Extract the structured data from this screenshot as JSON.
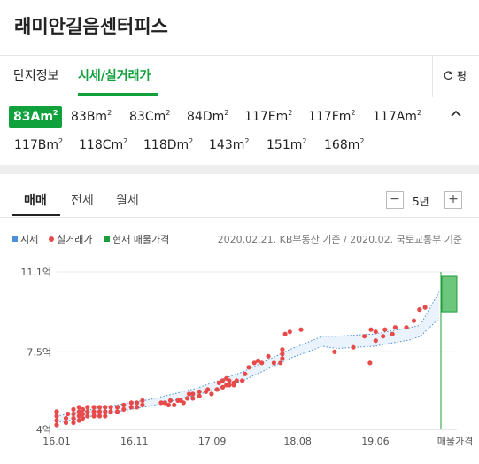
{
  "header": {
    "title": "래미안길음센터피스"
  },
  "tabs": {
    "info": "단지정보",
    "price": "시세/실거래가",
    "unit_toggle": "평"
  },
  "areas": [
    "83A",
    "83B",
    "83C",
    "84D",
    "117E",
    "117F",
    "117A",
    "117B",
    "118C",
    "118D",
    "143",
    "151",
    "168"
  ],
  "area_unit": "㎡",
  "selected_area": "83A",
  "deal_tabs": [
    "매매",
    "전세",
    "월세"
  ],
  "period": "5년",
  "legend": {
    "market": "시세",
    "actual": "실거래가",
    "listing": "현재 매물가격"
  },
  "source": "2020.02.21. KB부동산 기준 / 2020.02. 국토교통부 기준",
  "colors": {
    "accent": "#10a03c",
    "market": "#4a90d9",
    "actual": "#e84a4a",
    "listing": "#1e9e3a"
  },
  "chart_data": {
    "type": "scatter",
    "yticks": [
      "11.1억",
      "7.5억",
      "4억"
    ],
    "ytick_values": [
      11.1,
      7.5,
      4.0
    ],
    "xticks": [
      "16.01",
      "16.11",
      "17.09",
      "18.08",
      "19.06",
      "매물가격"
    ],
    "xtick_values": [
      2016.0,
      2016.833,
      2017.667,
      2018.583,
      2019.417
    ],
    "ylim": [
      4.0,
      11.1
    ],
    "xlim": [
      2016.0,
      2020.12
    ],
    "actual_trades": [
      [
        2016.0,
        4.2
      ],
      [
        2016.0,
        4.4
      ],
      [
        2016.0,
        4.6
      ],
      [
        2016.0,
        4.8
      ],
      [
        2016.1,
        4.3
      ],
      [
        2016.1,
        4.5
      ],
      [
        2016.12,
        4.7
      ],
      [
        2016.18,
        4.3
      ],
      [
        2016.18,
        4.5
      ],
      [
        2016.18,
        4.7
      ],
      [
        2016.18,
        4.9
      ],
      [
        2016.24,
        4.4
      ],
      [
        2016.24,
        4.6
      ],
      [
        2016.24,
        4.8
      ],
      [
        2016.24,
        5.0
      ],
      [
        2016.28,
        4.5
      ],
      [
        2016.28,
        4.7
      ],
      [
        2016.28,
        4.9
      ],
      [
        2016.33,
        4.6
      ],
      [
        2016.33,
        4.8
      ],
      [
        2016.33,
        5.0
      ],
      [
        2016.4,
        4.6
      ],
      [
        2016.4,
        4.8
      ],
      [
        2016.4,
        5.0
      ],
      [
        2016.46,
        4.6
      ],
      [
        2016.46,
        4.8
      ],
      [
        2016.46,
        5.0
      ],
      [
        2016.52,
        4.6
      ],
      [
        2016.52,
        4.8
      ],
      [
        2016.52,
        5.0
      ],
      [
        2016.58,
        4.8
      ],
      [
        2016.58,
        5.0
      ],
      [
        2016.65,
        4.8
      ],
      [
        2016.65,
        5.0
      ],
      [
        2016.72,
        4.9
      ],
      [
        2016.72,
        5.1
      ],
      [
        2016.8,
        5.0
      ],
      [
        2016.8,
        5.2
      ],
      [
        2016.86,
        5.0
      ],
      [
        2016.86,
        5.2
      ],
      [
        2016.92,
        5.1
      ],
      [
        2016.92,
        5.3
      ],
      [
        2017.12,
        5.2
      ],
      [
        2017.16,
        5.2
      ],
      [
        2017.2,
        5.1
      ],
      [
        2017.22,
        5.3
      ],
      [
        2017.26,
        5.1
      ],
      [
        2017.3,
        5.3
      ],
      [
        2017.33,
        5.3
      ],
      [
        2017.36,
        5.2
      ],
      [
        2017.4,
        5.4
      ],
      [
        2017.42,
        5.6
      ],
      [
        2017.46,
        5.4
      ],
      [
        2017.46,
        5.6
      ],
      [
        2017.53,
        5.5
      ],
      [
        2017.53,
        5.7
      ],
      [
        2017.6,
        5.7
      ],
      [
        2017.62,
        5.8
      ],
      [
        2017.66,
        5.6
      ],
      [
        2017.72,
        5.8
      ],
      [
        2017.74,
        6.1
      ],
      [
        2017.78,
        5.9
      ],
      [
        2017.78,
        6.2
      ],
      [
        2017.82,
        6.0
      ],
      [
        2017.82,
        6.3
      ],
      [
        2017.85,
        6.0
      ],
      [
        2017.85,
        6.2
      ],
      [
        2017.9,
        6.0
      ],
      [
        2017.9,
        6.1
      ],
      [
        2017.93,
        6.2
      ],
      [
        2017.99,
        6.2
      ],
      [
        2018.02,
        6.5
      ],
      [
        2018.06,
        6.8
      ],
      [
        2018.12,
        7.0
      ],
      [
        2018.16,
        7.1
      ],
      [
        2018.2,
        7.0
      ],
      [
        2018.27,
        7.3
      ],
      [
        2018.33,
        7.0
      ],
      [
        2018.4,
        7.0
      ],
      [
        2018.42,
        7.2
      ],
      [
        2018.42,
        7.4
      ],
      [
        2018.42,
        7.6
      ],
      [
        2018.45,
        8.3
      ],
      [
        2018.5,
        8.4
      ],
      [
        2018.62,
        8.5
      ],
      [
        2018.98,
        7.5
      ],
      [
        2019.18,
        7.7
      ],
      [
        2019.3,
        8.2
      ],
      [
        2019.36,
        7.0
      ],
      [
        2019.37,
        8.5
      ],
      [
        2019.42,
        8.0
      ],
      [
        2019.42,
        8.4
      ],
      [
        2019.5,
        8.2
      ],
      [
        2019.52,
        8.5
      ],
      [
        2019.6,
        8.3
      ],
      [
        2019.63,
        8.6
      ],
      [
        2019.75,
        8.6
      ],
      [
        2019.83,
        8.9
      ],
      [
        2019.89,
        9.4
      ],
      [
        2019.95,
        9.5
      ]
    ],
    "market_band": {
      "x": [
        2016.0,
        2016.5,
        2017.0,
        2017.5,
        2018.0,
        2018.5,
        2018.85,
        2019.0,
        2019.4,
        2019.8,
        2019.9,
        2020.1
      ],
      "low": [
        4.3,
        4.7,
        5.05,
        5.55,
        6.2,
        7.2,
        7.75,
        7.65,
        7.75,
        8.05,
        8.2,
        9.0
      ],
      "high": [
        4.6,
        5.0,
        5.35,
        5.85,
        6.6,
        7.6,
        8.2,
        8.2,
        8.3,
        8.6,
        8.7,
        10.2
      ]
    },
    "listing_range": [
      9.3,
      10.9
    ]
  }
}
